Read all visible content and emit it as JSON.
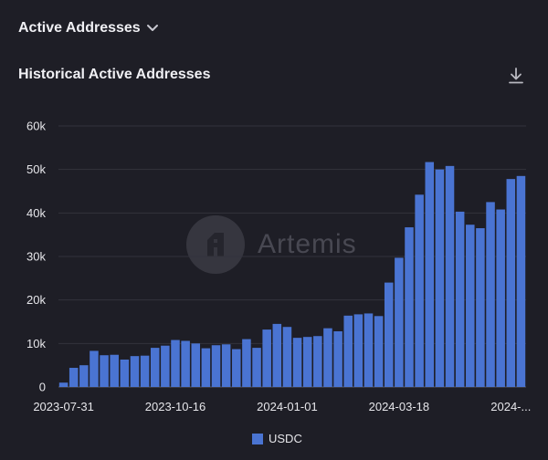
{
  "header": {
    "metric_selector": "Active Addresses",
    "chart_title": "Historical Active Addresses"
  },
  "icons": {
    "dropdown": "chevron-down-icon",
    "download": "download-icon",
    "watermark_logo": "artemis-logo-icon"
  },
  "watermark": {
    "text": "Artemis"
  },
  "colors": {
    "bar": "#4a74d2",
    "background": "#1e1e26"
  },
  "chart_data": {
    "type": "bar",
    "x_tick_labels": [
      "2023-07-31",
      "2023-10-16",
      "2024-01-01",
      "2024-03-18",
      "2024-..."
    ],
    "y_tick_labels": [
      "0",
      "10k",
      "20k",
      "30k",
      "40k",
      "50k",
      "60k"
    ],
    "ylim": [
      0,
      60000
    ],
    "grid": true,
    "legend_position": "bottom-center",
    "series": [
      {
        "name": "USDC",
        "values": [
          1000,
          4400,
          5000,
          8300,
          7300,
          7400,
          6300,
          7100,
          7200,
          9000,
          9500,
          10800,
          10600,
          10000,
          8900,
          9600,
          9800,
          8700,
          11000,
          9000,
          13200,
          14500,
          13800,
          11300,
          11500,
          11700,
          13500,
          12800,
          16400,
          16700,
          16900,
          16300,
          24000,
          29700,
          36700,
          44200,
          51700,
          50000,
          50800,
          40300,
          37300,
          36500,
          42500,
          40800,
          47800,
          48500
        ]
      }
    ]
  }
}
